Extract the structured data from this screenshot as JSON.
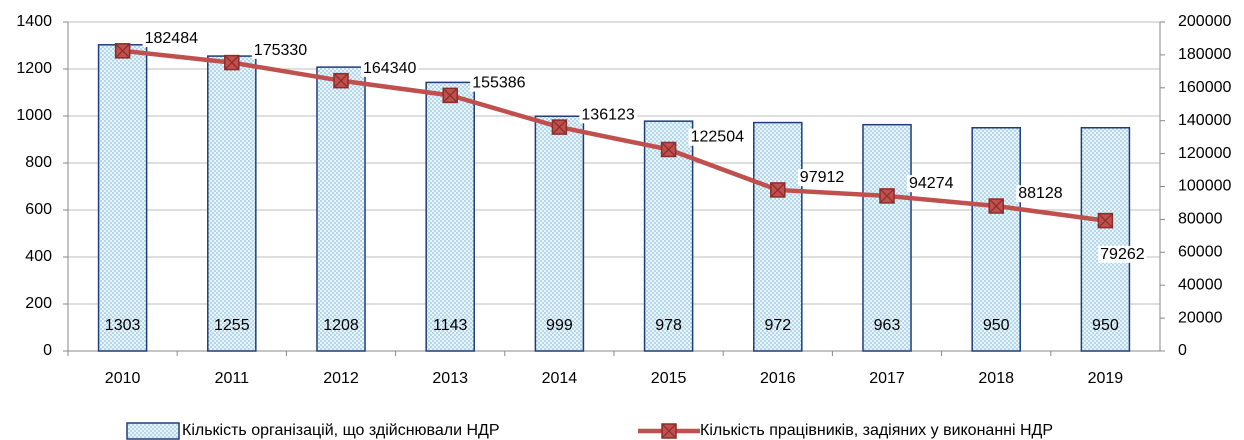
{
  "chart_data": {
    "type": "bar",
    "categories": [
      "2010",
      "2011",
      "2012",
      "2013",
      "2014",
      "2015",
      "2016",
      "2017",
      "2018",
      "2019"
    ],
    "series": [
      {
        "name": "Кількість організацій, що здійснювали НДР",
        "type": "bar",
        "color": "#1f3d7a",
        "values": [
          1303,
          1255,
          1208,
          1143,
          999,
          978,
          972,
          963,
          950,
          950
        ]
      },
      {
        "name": "Кількість працівників, задіяних у виконанні НДР",
        "type": "line",
        "axis": "y2",
        "color": "#c0504d",
        "values": [
          182484,
          175330,
          164340,
          155386,
          136123,
          122504,
          97912,
          94274,
          88128,
          79262
        ]
      }
    ],
    "ylim": [
      0,
      1400
    ],
    "yticks": [
      0,
      200,
      400,
      600,
      800,
      1000,
      1200,
      1400
    ],
    "y2lim": [
      0,
      200000
    ],
    "y2ticks": [
      0,
      20000,
      40000,
      60000,
      80000,
      100000,
      120000,
      140000,
      160000,
      180000,
      200000
    ],
    "grid": true,
    "legend": "bottom"
  }
}
